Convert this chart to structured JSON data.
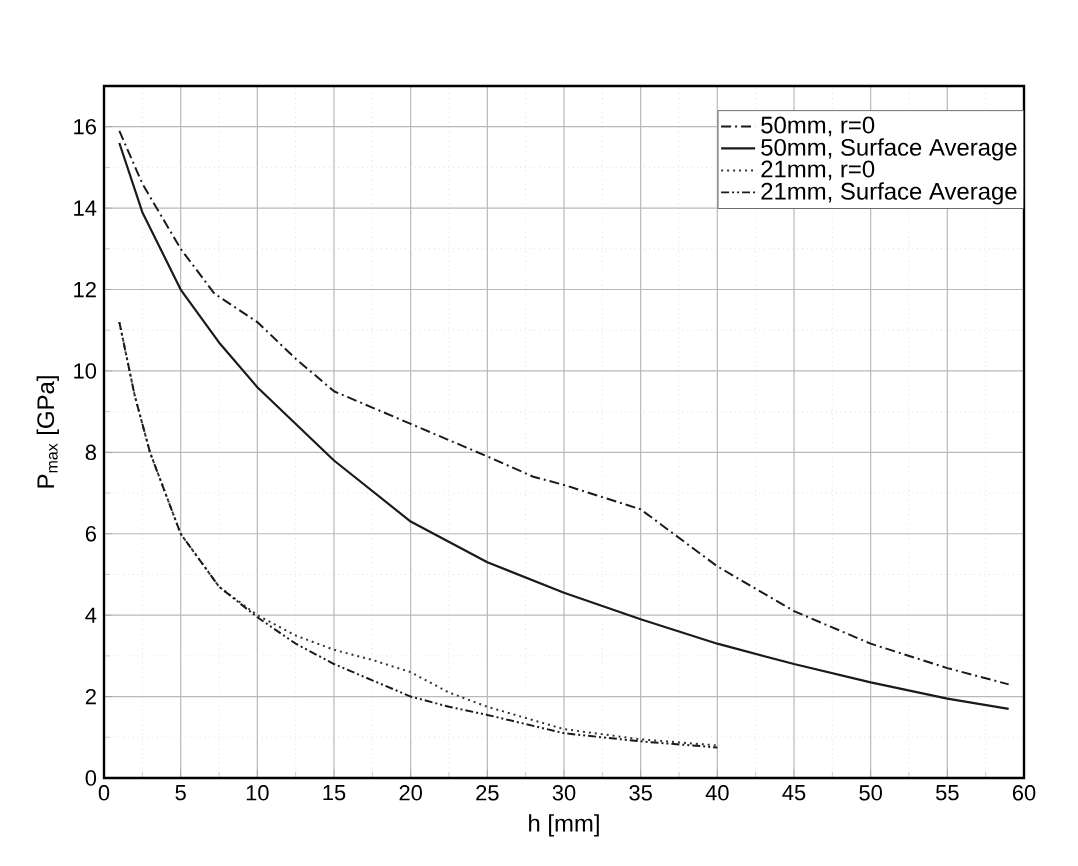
{
  "chart_data": {
    "type": "line",
    "xlabel": "h [mm]",
    "ylabel": "P$_{max}$ [GPa]",
    "xlim": [
      0,
      60
    ],
    "ylim": [
      0,
      17
    ],
    "xticks": [
      0,
      5,
      10,
      15,
      20,
      25,
      30,
      35,
      40,
      45,
      50,
      55,
      60
    ],
    "yticks": [
      0,
      2,
      4,
      6,
      8,
      10,
      12,
      14,
      16
    ],
    "grid": true,
    "legend": "top right",
    "marker": "none",
    "series": [
      {
        "name": "50mm, r=0",
        "color": "#1a1a1a",
        "line_style": "dashdotted",
        "x": [
          1,
          2.5,
          5,
          7.2,
          10,
          12.5,
          15,
          17.5,
          20,
          25,
          28,
          30,
          32.5,
          35,
          37.5,
          40,
          45,
          50,
          55,
          59
        ],
        "values": [
          15.9,
          14.6,
          13.0,
          11.9,
          11.2,
          10.3,
          9.5,
          9.1,
          8.7,
          7.9,
          7.4,
          7.2,
          6.9,
          6.6,
          5.9,
          5.2,
          4.1,
          3.3,
          2.7,
          2.3
        ]
      },
      {
        "name": "50mm, Surface Average",
        "color": "#1a1a1a",
        "line_style": "solid",
        "x": [
          1,
          2.5,
          5,
          7.5,
          10,
          15,
          20,
          25,
          30,
          35,
          40,
          45,
          50,
          55,
          59
        ],
        "values": [
          15.6,
          13.9,
          12.0,
          10.7,
          9.6,
          7.8,
          6.3,
          5.3,
          4.55,
          3.9,
          3.3,
          2.8,
          2.35,
          1.95,
          1.7
        ]
      },
      {
        "name": "21mm, r=0",
        "color": "#333333",
        "line_style": "dotted",
        "x": [
          1,
          2,
          3,
          5,
          7.5,
          10,
          12.5,
          15,
          17.5,
          20,
          22.5,
          25,
          30,
          35,
          40
        ],
        "values": [
          11.2,
          9.4,
          8.0,
          6.0,
          4.7,
          4.0,
          3.5,
          3.15,
          2.9,
          2.6,
          2.1,
          1.75,
          1.2,
          0.95,
          0.8
        ]
      },
      {
        "name": "21mm, Surface Average",
        "color": "#1a1a1a",
        "line_style": "dashdotdotted",
        "x": [
          1,
          2,
          3,
          5,
          7.5,
          10,
          12.5,
          15,
          17.5,
          20,
          22.5,
          25,
          30,
          35,
          40
        ],
        "values": [
          11.2,
          9.4,
          8.0,
          6.0,
          4.7,
          3.95,
          3.3,
          2.8,
          2.4,
          2.0,
          1.75,
          1.55,
          1.1,
          0.9,
          0.75
        ]
      }
    ]
  }
}
